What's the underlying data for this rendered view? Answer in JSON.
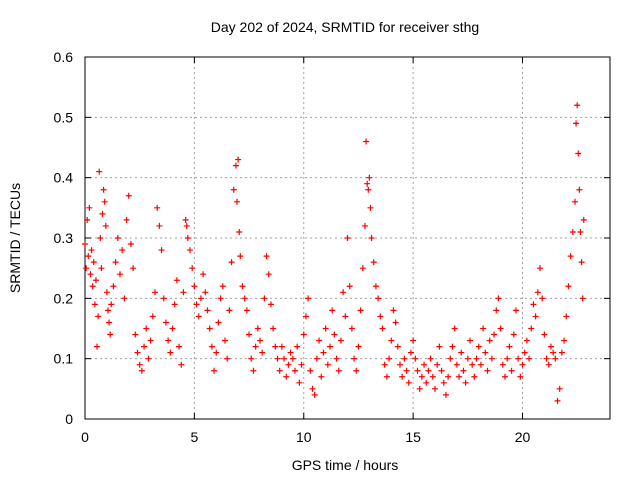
{
  "chart_data": {
    "type": "scatter",
    "title": "Day 202 of 2024, SRMTID for receiver sthg",
    "xlabel": "GPS time / hours",
    "ylabel": "SRMTID / TECUs",
    "xlim": [
      0,
      24
    ],
    "ylim": [
      0,
      0.6
    ],
    "xticks": [
      0,
      5,
      10,
      15,
      20
    ],
    "yticks": [
      0,
      0.1,
      0.2,
      0.3,
      0.4,
      0.5,
      0.6
    ],
    "grid": true,
    "marker": "+",
    "marker_color": "#ff0000",
    "series": [
      {
        "name": "SRMTID",
        "points": [
          [
            0.0,
            0.29
          ],
          [
            0.05,
            0.25
          ],
          [
            0.1,
            0.33
          ],
          [
            0.15,
            0.27
          ],
          [
            0.2,
            0.35
          ],
          [
            0.25,
            0.24
          ],
          [
            0.3,
            0.28
          ],
          [
            0.35,
            0.22
          ],
          [
            0.4,
            0.26
          ],
          [
            0.45,
            0.19
          ],
          [
            0.5,
            0.23
          ],
          [
            0.55,
            0.12
          ],
          [
            0.6,
            0.17
          ],
          [
            0.65,
            0.41
          ],
          [
            0.7,
            0.3
          ],
          [
            0.75,
            0.25
          ],
          [
            0.8,
            0.34
          ],
          [
            0.85,
            0.38
          ],
          [
            0.9,
            0.36
          ],
          [
            0.95,
            0.32
          ],
          [
            1.0,
            0.21
          ],
          [
            1.05,
            0.18
          ],
          [
            1.1,
            0.16
          ],
          [
            1.15,
            0.14
          ],
          [
            1.2,
            0.19
          ],
          [
            1.3,
            0.22
          ],
          [
            1.4,
            0.26
          ],
          [
            1.5,
            0.3
          ],
          [
            1.6,
            0.24
          ],
          [
            1.7,
            0.28
          ],
          [
            1.8,
            0.2
          ],
          [
            1.9,
            0.33
          ],
          [
            2.0,
            0.37
          ],
          [
            2.1,
            0.29
          ],
          [
            2.2,
            0.25
          ],
          [
            2.3,
            0.14
          ],
          [
            2.4,
            0.11
          ],
          [
            2.5,
            0.09
          ],
          [
            2.6,
            0.08
          ],
          [
            2.7,
            0.12
          ],
          [
            2.8,
            0.15
          ],
          [
            2.9,
            0.1
          ],
          [
            3.0,
            0.13
          ],
          [
            3.1,
            0.17
          ],
          [
            3.2,
            0.21
          ],
          [
            3.3,
            0.35
          ],
          [
            3.4,
            0.32
          ],
          [
            3.5,
            0.28
          ],
          [
            3.6,
            0.2
          ],
          [
            3.7,
            0.16
          ],
          [
            3.8,
            0.13
          ],
          [
            3.9,
            0.11
          ],
          [
            4.0,
            0.15
          ],
          [
            4.1,
            0.19
          ],
          [
            4.2,
            0.23
          ],
          [
            4.3,
            0.12
          ],
          [
            4.4,
            0.09
          ],
          [
            4.5,
            0.21
          ],
          [
            4.6,
            0.33
          ],
          [
            4.65,
            0.32
          ],
          [
            4.7,
            0.3
          ],
          [
            4.8,
            0.28
          ],
          [
            4.9,
            0.25
          ],
          [
            5.0,
            0.22
          ],
          [
            5.1,
            0.19
          ],
          [
            5.2,
            0.17
          ],
          [
            5.3,
            0.2
          ],
          [
            5.4,
            0.24
          ],
          [
            5.5,
            0.21
          ],
          [
            5.6,
            0.18
          ],
          [
            5.7,
            0.15
          ],
          [
            5.8,
            0.12
          ],
          [
            5.9,
            0.08
          ],
          [
            6.0,
            0.11
          ],
          [
            6.1,
            0.16
          ],
          [
            6.2,
            0.2
          ],
          [
            6.3,
            0.22
          ],
          [
            6.4,
            0.13
          ],
          [
            6.5,
            0.1
          ],
          [
            6.6,
            0.18
          ],
          [
            6.7,
            0.26
          ],
          [
            6.8,
            0.38
          ],
          [
            6.9,
            0.42
          ],
          [
            6.95,
            0.36
          ],
          [
            7.0,
            0.43
          ],
          [
            7.05,
            0.31
          ],
          [
            7.1,
            0.27
          ],
          [
            7.2,
            0.22
          ],
          [
            7.3,
            0.2
          ],
          [
            7.4,
            0.18
          ],
          [
            7.5,
            0.14
          ],
          [
            7.6,
            0.1
          ],
          [
            7.7,
            0.08
          ],
          [
            7.8,
            0.12
          ],
          [
            7.9,
            0.15
          ],
          [
            8.0,
            0.13
          ],
          [
            8.1,
            0.11
          ],
          [
            8.2,
            0.2
          ],
          [
            8.3,
            0.27
          ],
          [
            8.4,
            0.24
          ],
          [
            8.5,
            0.19
          ],
          [
            8.6,
            0.15
          ],
          [
            8.7,
            0.12
          ],
          [
            8.8,
            0.1
          ],
          [
            8.9,
            0.08
          ],
          [
            9.0,
            0.12
          ],
          [
            9.1,
            0.1
          ],
          [
            9.2,
            0.07
          ],
          [
            9.3,
            0.09
          ],
          [
            9.4,
            0.11
          ],
          [
            9.5,
            0.1
          ],
          [
            9.6,
            0.08
          ],
          [
            9.7,
            0.12
          ],
          [
            9.8,
            0.06
          ],
          [
            9.9,
            0.09
          ],
          [
            10.0,
            0.14
          ],
          [
            10.1,
            0.17
          ],
          [
            10.2,
            0.2
          ],
          [
            10.3,
            0.08
          ],
          [
            10.4,
            0.05
          ],
          [
            10.5,
            0.04
          ],
          [
            10.6,
            0.1
          ],
          [
            10.7,
            0.13
          ],
          [
            10.8,
            0.07
          ],
          [
            10.9,
            0.11
          ],
          [
            11.0,
            0.15
          ],
          [
            11.1,
            0.09
          ],
          [
            11.2,
            0.12
          ],
          [
            11.3,
            0.18
          ],
          [
            11.4,
            0.14
          ],
          [
            11.5,
            0.1
          ],
          [
            11.6,
            0.08
          ],
          [
            11.7,
            0.13
          ],
          [
            11.8,
            0.21
          ],
          [
            11.9,
            0.17
          ],
          [
            12.0,
            0.3
          ],
          [
            12.1,
            0.22
          ],
          [
            12.2,
            0.15
          ],
          [
            12.3,
            0.1
          ],
          [
            12.4,
            0.08
          ],
          [
            12.5,
            0.12
          ],
          [
            12.6,
            0.18
          ],
          [
            12.7,
            0.25
          ],
          [
            12.8,
            0.32
          ],
          [
            12.85,
            0.46
          ],
          [
            12.9,
            0.39
          ],
          [
            12.95,
            0.38
          ],
          [
            13.0,
            0.4
          ],
          [
            13.05,
            0.35
          ],
          [
            13.1,
            0.3
          ],
          [
            13.2,
            0.26
          ],
          [
            13.3,
            0.22
          ],
          [
            13.4,
            0.2
          ],
          [
            13.5,
            0.17
          ],
          [
            13.6,
            0.15
          ],
          [
            13.7,
            0.09
          ],
          [
            13.8,
            0.07
          ],
          [
            13.9,
            0.1
          ],
          [
            14.0,
            0.13
          ],
          [
            14.1,
            0.18
          ],
          [
            14.2,
            0.16
          ],
          [
            14.3,
            0.12
          ],
          [
            14.4,
            0.09
          ],
          [
            14.5,
            0.07
          ],
          [
            14.6,
            0.1
          ],
          [
            14.7,
            0.08
          ],
          [
            14.8,
            0.06
          ],
          [
            14.9,
            0.11
          ],
          [
            15.0,
            0.13
          ],
          [
            15.1,
            0.1
          ],
          [
            15.2,
            0.08
          ],
          [
            15.3,
            0.05
          ],
          [
            15.4,
            0.07
          ],
          [
            15.5,
            0.09
          ],
          [
            15.6,
            0.06
          ],
          [
            15.7,
            0.08
          ],
          [
            15.8,
            0.1
          ],
          [
            15.9,
            0.07
          ],
          [
            16.0,
            0.05
          ],
          [
            16.1,
            0.09
          ],
          [
            16.2,
            0.12
          ],
          [
            16.3,
            0.08
          ],
          [
            16.4,
            0.06
          ],
          [
            16.5,
            0.04
          ],
          [
            16.6,
            0.07
          ],
          [
            16.7,
            0.1
          ],
          [
            16.8,
            0.12
          ],
          [
            16.9,
            0.15
          ],
          [
            17.0,
            0.09
          ],
          [
            17.1,
            0.07
          ],
          [
            17.2,
            0.11
          ],
          [
            17.3,
            0.08
          ],
          [
            17.4,
            0.06
          ],
          [
            17.5,
            0.1
          ],
          [
            17.6,
            0.13
          ],
          [
            17.7,
            0.09
          ],
          [
            17.8,
            0.07
          ],
          [
            17.9,
            0.1
          ],
          [
            18.0,
            0.12
          ],
          [
            18.1,
            0.09
          ],
          [
            18.2,
            0.15
          ],
          [
            18.3,
            0.11
          ],
          [
            18.4,
            0.08
          ],
          [
            18.5,
            0.13
          ],
          [
            18.6,
            0.1
          ],
          [
            18.7,
            0.14
          ],
          [
            18.8,
            0.18
          ],
          [
            18.9,
            0.2
          ],
          [
            19.0,
            0.15
          ],
          [
            19.1,
            0.09
          ],
          [
            19.2,
            0.07
          ],
          [
            19.3,
            0.1
          ],
          [
            19.4,
            0.12
          ],
          [
            19.5,
            0.08
          ],
          [
            19.6,
            0.14
          ],
          [
            19.7,
            0.18
          ],
          [
            19.8,
            0.1
          ],
          [
            19.9,
            0.07
          ],
          [
            20.0,
            0.09
          ],
          [
            20.1,
            0.11
          ],
          [
            20.2,
            0.13
          ],
          [
            20.3,
            0.1
          ],
          [
            20.4,
            0.15
          ],
          [
            20.5,
            0.19
          ],
          [
            20.6,
            0.17
          ],
          [
            20.7,
            0.21
          ],
          [
            20.8,
            0.25
          ],
          [
            20.9,
            0.2
          ],
          [
            21.0,
            0.14
          ],
          [
            21.1,
            0.1
          ],
          [
            21.2,
            0.09
          ],
          [
            21.3,
            0.12
          ],
          [
            21.4,
            0.11
          ],
          [
            21.5,
            0.1
          ],
          [
            21.6,
            0.03
          ],
          [
            21.7,
            0.05
          ],
          [
            21.8,
            0.11
          ],
          [
            21.9,
            0.13
          ],
          [
            22.0,
            0.17
          ],
          [
            22.1,
            0.22
          ],
          [
            22.2,
            0.27
          ],
          [
            22.3,
            0.31
          ],
          [
            22.4,
            0.36
          ],
          [
            22.45,
            0.49
          ],
          [
            22.5,
            0.52
          ],
          [
            22.55,
            0.44
          ],
          [
            22.6,
            0.38
          ],
          [
            22.65,
            0.31
          ],
          [
            22.7,
            0.26
          ],
          [
            22.75,
            0.2
          ],
          [
            22.8,
            0.33
          ]
        ]
      }
    ]
  }
}
